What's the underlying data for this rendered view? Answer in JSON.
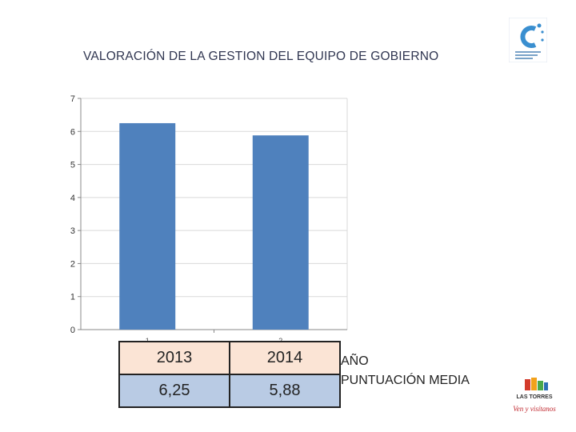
{
  "title": "VALORACIÓN DE LA GESTION DEL EQUIPO DE GOBIERNO",
  "logos": {
    "top_right": "customer-satisfaction-logo",
    "bottom_right": "las-torres-municipal-logo",
    "bottom_right_text": "LAS TORRES",
    "bottom_right_motto": "Ven y visítanos"
  },
  "chart_data": {
    "type": "bar",
    "categories": [
      "1",
      "2"
    ],
    "series": [
      {
        "name": "PUNTUACIÓN MEDIA",
        "values": [
          6.25,
          5.88
        ]
      }
    ],
    "ylim": [
      0,
      7
    ],
    "yticks": [
      0,
      1,
      2,
      3,
      4,
      5,
      6,
      7
    ],
    "grid": true,
    "bar_color": "#4f81bd"
  },
  "table": {
    "row_labels": [
      "AÑO",
      "PUNTUACIÓN MEDIA"
    ],
    "years": [
      "2013",
      "2014"
    ],
    "scores": [
      "6,25",
      "5,88"
    ]
  }
}
